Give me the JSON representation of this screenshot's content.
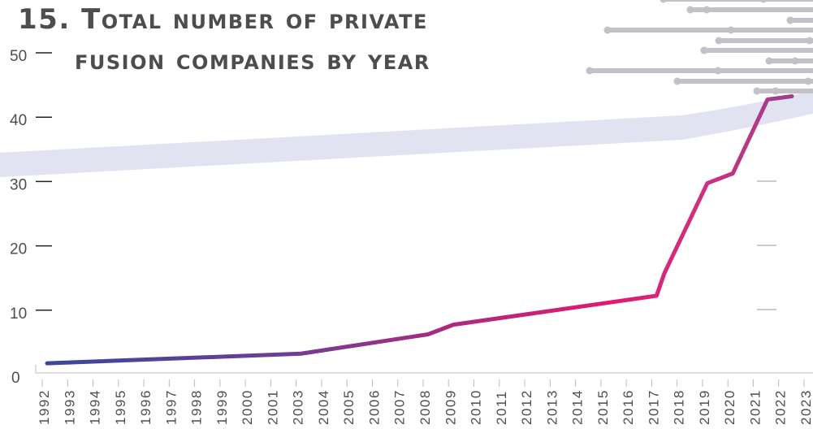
{
  "chart_data": {
    "type": "line",
    "title": "15. Total number of private fusion companies by year",
    "title_lines": [
      "15. Total number of private",
      "fusion companies by year"
    ],
    "xlabel": "",
    "ylabel": "",
    "x_tick_labels": [
      "1992",
      "1993",
      "1994",
      "1995",
      "1996",
      "1997",
      "1998",
      "1999",
      "2000",
      "2001",
      "2003",
      "2004",
      "2005",
      "2006",
      "2007",
      "2008",
      "2009",
      "2010",
      "2011",
      "2012",
      "2013",
      "2014",
      "2015",
      "2016",
      "2017",
      "2018",
      "2019",
      "2020",
      "2021",
      "2022",
      "2023"
    ],
    "y_ticks": [
      0,
      10,
      20,
      30,
      40,
      50
    ],
    "ylim": [
      0,
      50
    ],
    "grid": false,
    "series": [
      {
        "x": [
          "1992",
          "2003",
          "2008",
          "2009",
          "2017",
          "2018",
          "2019",
          "2020",
          "2022",
          "2023"
        ],
        "values": [
          2,
          3.5,
          6.5,
          8,
          12.5,
          16,
          30,
          31.5,
          43,
          43.5
        ]
      }
    ],
    "colors": {
      "line_start": "#39479a",
      "line_mid": "#e2186f",
      "line_end": "#9b3f8e",
      "band": "#dfe0ee",
      "decor": "#c4c0c8",
      "text": "#4d4d4f"
    }
  }
}
